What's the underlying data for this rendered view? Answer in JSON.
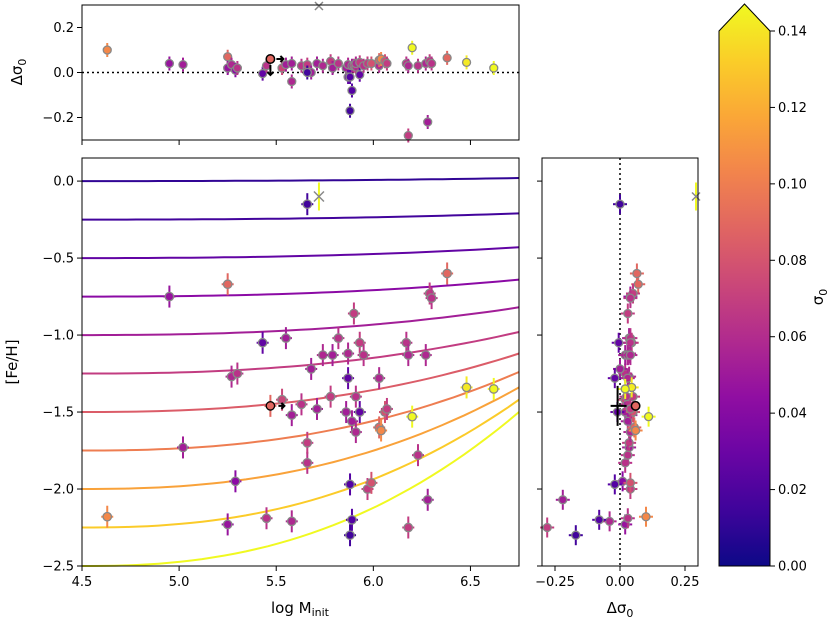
{
  "chart_data": {
    "type": "scatter",
    "panels": {
      "main": {
        "xlabel": "log M",
        "xlabel_sub": "init",
        "ylabel": "[Fe/H]",
        "xlim": [
          4.5,
          6.75
        ],
        "ylim": [
          -2.5,
          0.15
        ],
        "xticks": [
          "4.5",
          "5.0",
          "5.5",
          "6.0",
          "6.5"
        ],
        "yticks": [
          "0.0",
          "−0.5",
          "−1.0",
          "−1.5",
          "−2.0",
          "−2.5"
        ]
      },
      "top": {
        "ylabel": "Δσ",
        "ylabel_sub": "0",
        "xlim": [
          4.5,
          6.75
        ],
        "ylim": [
          -0.3,
          0.3
        ],
        "yticks": [
          "0.2",
          "0.0",
          "−0.2"
        ]
      },
      "right": {
        "xlabel": "Δσ",
        "xlabel_sub": "0",
        "xlim": [
          -0.3,
          0.3
        ],
        "ylim": [
          -2.5,
          0.15
        ],
        "xticks": [
          "−0.25",
          "0.00",
          "0.25"
        ]
      }
    },
    "colorbar": {
      "label": "σ",
      "label_sub": "0",
      "range": [
        0.0,
        0.14
      ],
      "ticks": [
        "0.00",
        "0.02",
        "0.04",
        "0.06",
        "0.08",
        "0.10",
        "0.12",
        "0.14"
      ],
      "colormap": "plasma",
      "extend": "max"
    },
    "tracks": [
      {
        "feh0": 0.0,
        "feh1": 0.02,
        "sigma": 0.01
      },
      {
        "feh0": -0.25,
        "feh1": -0.21,
        "sigma": 0.015
      },
      {
        "feh0": -0.5,
        "feh1": -0.43,
        "sigma": 0.025
      },
      {
        "feh0": -0.75,
        "feh1": -0.64,
        "sigma": 0.04
      },
      {
        "feh0": -1.0,
        "feh1": -0.82,
        "sigma": 0.05
      },
      {
        "feh0": -1.25,
        "feh1": -0.98,
        "sigma": 0.065
      },
      {
        "feh0": -1.5,
        "feh1": -1.12,
        "sigma": 0.08
      },
      {
        "feh0": -1.75,
        "feh1": -1.24,
        "sigma": 0.095
      },
      {
        "feh0": -2.0,
        "feh1": -1.34,
        "sigma": 0.11
      },
      {
        "feh0": -2.25,
        "feh1": -1.42,
        "sigma": 0.125
      },
      {
        "feh0": -2.5,
        "feh1": -1.5,
        "sigma": 0.14
      }
    ],
    "clusters": [
      {
        "logm": 4.63,
        "feh": -2.18,
        "sigma": 0.1,
        "dsigma": 0.1
      },
      {
        "logm": 4.95,
        "feh": -0.75,
        "sigma": 0.045,
        "dsigma": 0.04
      },
      {
        "logm": 5.02,
        "feh": -1.73,
        "sigma": 0.05,
        "dsigma": 0.035
      },
      {
        "logm": 5.25,
        "feh": -0.67,
        "sigma": 0.085,
        "dsigma": 0.07
      },
      {
        "logm": 5.25,
        "feh": -2.23,
        "sigma": 0.045,
        "dsigma": 0.02
      },
      {
        "logm": 5.27,
        "feh": -1.27,
        "sigma": 0.055,
        "dsigma": 0.035
      },
      {
        "logm": 5.29,
        "feh": -1.95,
        "sigma": 0.04,
        "dsigma": 0.01
      },
      {
        "logm": 5.3,
        "feh": -1.25,
        "sigma": 0.06,
        "dsigma": 0.02
      },
      {
        "logm": 5.43,
        "feh": -1.05,
        "sigma": 0.025,
        "dsigma": -0.005
      },
      {
        "logm": 5.45,
        "feh": -2.19,
        "sigma": 0.06,
        "dsigma": 0.03
      },
      {
        "logm": 5.53,
        "feh": -1.42,
        "sigma": 0.07,
        "dsigma": 0.02
      },
      {
        "logm": 5.55,
        "feh": -1.02,
        "sigma": 0.05,
        "dsigma": 0.035
      },
      {
        "logm": 5.58,
        "feh": -1.52,
        "sigma": 0.05,
        "dsigma": 0.04
      },
      {
        "logm": 5.58,
        "feh": -2.21,
        "sigma": 0.055,
        "dsigma": -0.04
      },
      {
        "logm": 5.63,
        "feh": -1.45,
        "sigma": 0.06,
        "dsigma": 0.03
      },
      {
        "logm": 5.66,
        "feh": -1.83,
        "sigma": 0.06,
        "dsigma": 0.02
      },
      {
        "logm": 5.66,
        "feh": -1.7,
        "sigma": 0.065,
        "dsigma": 0.035
      },
      {
        "logm": 5.68,
        "feh": -1.22,
        "sigma": 0.05,
        "dsigma": 0.0
      },
      {
        "logm": 5.66,
        "feh": -0.15,
        "sigma": 0.015,
        "dsigma": 0.0
      },
      {
        "logm": 5.71,
        "feh": -1.48,
        "sigma": 0.05,
        "dsigma": 0.04
      },
      {
        "logm": 5.74,
        "feh": -1.13,
        "sigma": 0.055,
        "dsigma": 0.03
      },
      {
        "logm": 5.78,
        "feh": -1.4,
        "sigma": 0.065,
        "dsigma": 0.05
      },
      {
        "logm": 5.79,
        "feh": -1.13,
        "sigma": 0.05,
        "dsigma": 0.02
      },
      {
        "logm": 5.82,
        "feh": -1.02,
        "sigma": 0.06,
        "dsigma": 0.04
      },
      {
        "logm": 5.86,
        "feh": -1.5,
        "sigma": 0.05,
        "dsigma": 0.02
      },
      {
        "logm": 5.87,
        "feh": -1.12,
        "sigma": 0.055,
        "dsigma": 0.035
      },
      {
        "logm": 5.87,
        "feh": -1.28,
        "sigma": 0.025,
        "dsigma": -0.02
      },
      {
        "logm": 5.88,
        "feh": -1.97,
        "sigma": 0.02,
        "dsigma": -0.02
      },
      {
        "logm": 5.88,
        "feh": -2.3,
        "sigma": 0.015,
        "dsigma": -0.17
      },
      {
        "logm": 5.89,
        "feh": -2.2,
        "sigma": 0.02,
        "dsigma": -0.08
      },
      {
        "logm": 5.89,
        "feh": -1.56,
        "sigma": 0.05,
        "dsigma": 0.03
      },
      {
        "logm": 5.9,
        "feh": -0.86,
        "sigma": 0.065,
        "dsigma": 0.03
      },
      {
        "logm": 5.91,
        "feh": -1.4,
        "sigma": 0.06,
        "dsigma": 0.025
      },
      {
        "logm": 5.91,
        "feh": -1.63,
        "sigma": 0.055,
        "dsigma": 0.04
      },
      {
        "logm": 5.93,
        "feh": -1.05,
        "sigma": 0.065,
        "dsigma": 0.045
      },
      {
        "logm": 5.93,
        "feh": -1.5,
        "sigma": 0.025,
        "dsigma": -0.01
      },
      {
        "logm": 5.95,
        "feh": -1.13,
        "sigma": 0.06,
        "dsigma": 0.03
      },
      {
        "logm": 5.97,
        "feh": -2.0,
        "sigma": 0.065,
        "dsigma": 0.04
      },
      {
        "logm": 5.99,
        "feh": -1.96,
        "sigma": 0.075,
        "dsigma": 0.04
      },
      {
        "logm": 6.03,
        "feh": -1.28,
        "sigma": 0.055,
        "dsigma": 0.03
      },
      {
        "logm": 6.03,
        "feh": -1.6,
        "sigma": 0.085,
        "dsigma": 0.055
      },
      {
        "logm": 6.04,
        "feh": -1.62,
        "sigma": 0.1,
        "dsigma": 0.06
      },
      {
        "logm": 6.06,
        "feh": -1.5,
        "sigma": 0.075,
        "dsigma": 0.05
      },
      {
        "logm": 6.07,
        "feh": -1.48,
        "sigma": 0.065,
        "dsigma": 0.04
      },
      {
        "logm": 6.17,
        "feh": -1.05,
        "sigma": 0.06,
        "dsigma": 0.04
      },
      {
        "logm": 6.18,
        "feh": -2.25,
        "sigma": 0.065,
        "dsigma": -0.28
      },
      {
        "logm": 6.18,
        "feh": -1.13,
        "sigma": 0.055,
        "dsigma": 0.03
      },
      {
        "logm": 6.2,
        "feh": -1.53,
        "sigma": 0.14,
        "dsigma": 0.11
      },
      {
        "logm": 6.23,
        "feh": -1.78,
        "sigma": 0.06,
        "dsigma": 0.03
      },
      {
        "logm": 6.27,
        "feh": -1.13,
        "sigma": 0.055,
        "dsigma": 0.04
      },
      {
        "logm": 6.28,
        "feh": -2.07,
        "sigma": 0.05,
        "dsigma": -0.22
      },
      {
        "logm": 6.29,
        "feh": -0.73,
        "sigma": 0.065,
        "dsigma": 0.05
      },
      {
        "logm": 6.3,
        "feh": -0.76,
        "sigma": 0.06,
        "dsigma": 0.04
      },
      {
        "logm": 6.38,
        "feh": -0.6,
        "sigma": 0.085,
        "dsigma": 0.065
      },
      {
        "logm": 6.48,
        "feh": -1.34,
        "sigma": 0.135,
        "dsigma": 0.045
      },
      {
        "logm": 6.62,
        "feh": -1.35,
        "sigma": 0.14,
        "dsigma": 0.02
      }
    ],
    "special": {
      "logm": 5.47,
      "feh": -1.46,
      "sigma": 0.085,
      "dsigma": 0.06
    },
    "crossed": {
      "logm": 5.72,
      "feh": -0.1,
      "sigma": 0.14,
      "dsigma": 0.3
    }
  }
}
